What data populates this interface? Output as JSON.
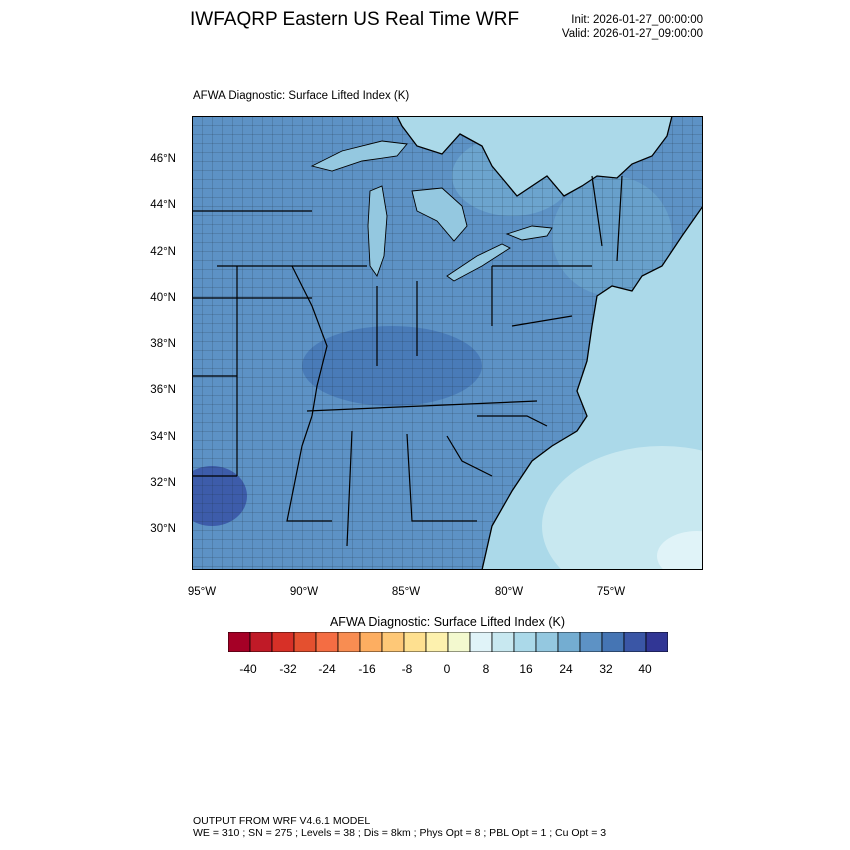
{
  "header": {
    "title": "IWFAQRP Eastern US Real Time WRF",
    "init": "Init: 2026-01-27_00:00:00",
    "valid": "Valid: 2026-01-27_09:00:00"
  },
  "panel": {
    "subtitle": "AFWA Diagnostic: Surface Lifted Index   (K)"
  },
  "axes": {
    "lat_labels": [
      "46°N",
      "44°N",
      "42°N",
      "40°N",
      "38°N",
      "36°N",
      "34°N",
      "32°N",
      "30°N"
    ],
    "lon_labels": [
      "95°W",
      "90°W",
      "85°W",
      "80°W",
      "75°W"
    ]
  },
  "colorbar": {
    "title": "AFWA Diagnostic: Surface Lifted Index  (K)",
    "tick_labels": [
      "-40",
      "-32",
      "-24",
      "-16",
      "-8",
      "0",
      "8",
      "16",
      "24",
      "32",
      "40"
    ],
    "colors": [
      "#a50026",
      "#c01a27",
      "#d73027",
      "#e4502f",
      "#f46d43",
      "#f88d52",
      "#fdae61",
      "#fec877",
      "#fee090",
      "#fdf1ae",
      "#f3f9cf",
      "#e0f3f8",
      "#c8e8f0",
      "#abd9e9",
      "#94c8e0",
      "#74add1",
      "#5d92c5",
      "#4575b4",
      "#3a56a6",
      "#313695"
    ]
  },
  "map_style": {
    "land_color": "#5d92c5",
    "lake_color": "#94c8e0",
    "ocean_color": "#abd9e9",
    "border_color": "#000000"
  },
  "footer": {
    "line1": "OUTPUT FROM WRF V4.6.1 MODEL",
    "line2": "WE = 310 ; SN = 275 ; Levels = 38 ; Dis = 8km ; Phys Opt = 8 ; PBL Opt = 1 ; Cu Opt = 3"
  }
}
